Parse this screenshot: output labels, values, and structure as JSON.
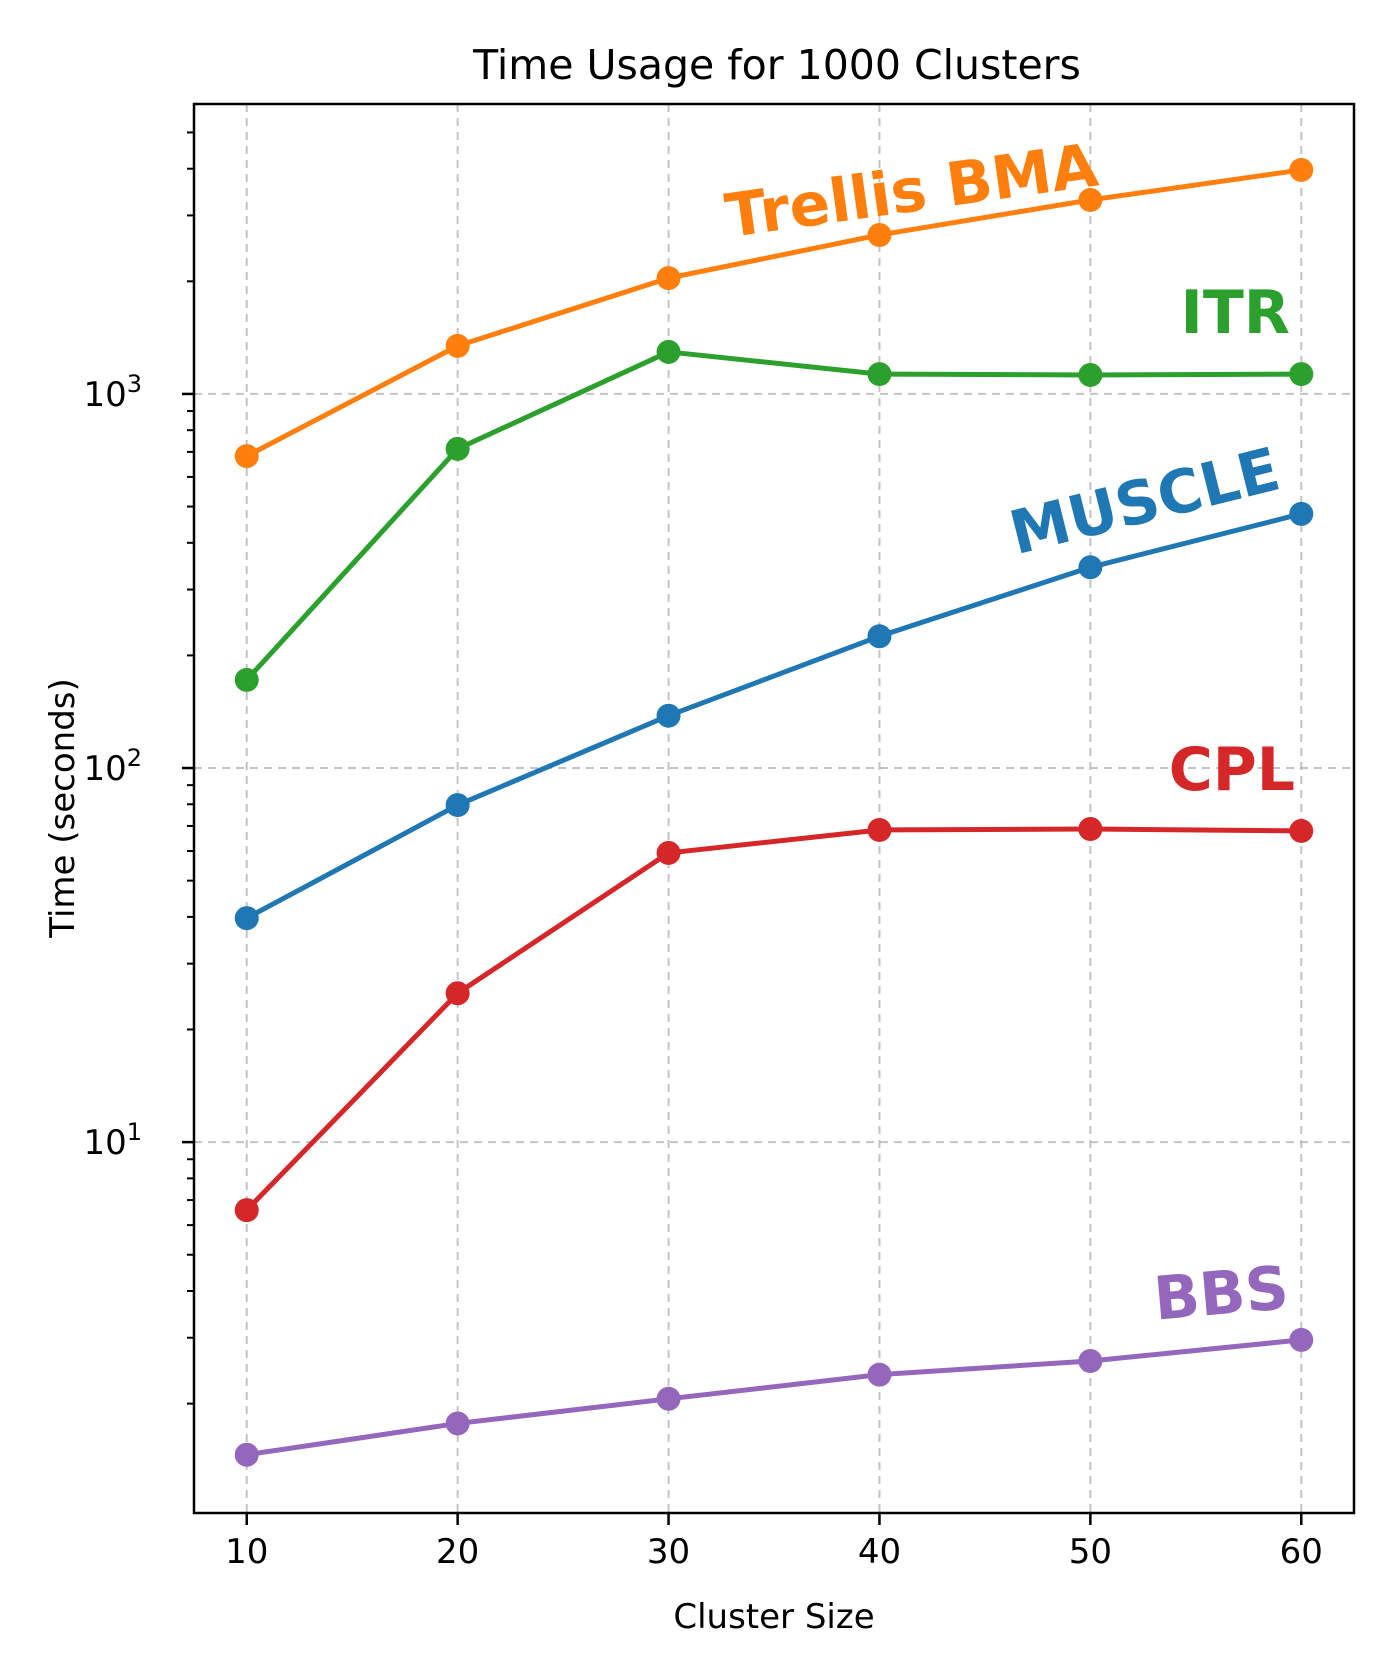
{
  "chart_data": {
    "type": "line",
    "title": "Time Usage for 1000 Clusters",
    "xlabel": "Cluster Size",
    "ylabel": "Time (seconds)",
    "yscale": "log",
    "xlim": [
      7.5,
      62.5
    ],
    "ylim": [
      1.02,
      5957
    ],
    "grid": true,
    "x": [
      10,
      20,
      30,
      40,
      50,
      60
    ],
    "x_ticks": [
      "10",
      "20",
      "30",
      "40",
      "50",
      "60"
    ],
    "y_ticks": [
      {
        "base": "10",
        "exp": "1",
        "value": 10
      },
      {
        "base": "10",
        "exp": "2",
        "value": 100
      },
      {
        "base": "10",
        "exp": "3",
        "value": 1000
      }
    ],
    "series": [
      {
        "name": "Trellis BMA",
        "color": "#ff7f0e",
        "values": [
          682,
          1344,
          2040,
          2660,
          3300,
          3970
        ],
        "label_angle": -8
      },
      {
        "name": "ITR",
        "color": "#2ca02c",
        "values": [
          172,
          713,
          1295,
          1130,
          1124,
          1130
        ],
        "label_angle": 0
      },
      {
        "name": "MUSCLE",
        "color": "#1f77b4",
        "values": [
          39.7,
          79.6,
          138,
          225,
          344,
          478
        ],
        "label_angle": -14
      },
      {
        "name": "CPL",
        "color": "#d62728",
        "values": [
          6.58,
          25.0,
          59.3,
          68.3,
          68.7,
          67.9
        ],
        "label_angle": 0
      },
      {
        "name": "BBS",
        "color": "#9467bd",
        "values": [
          1.46,
          1.77,
          2.06,
          2.39,
          2.6,
          2.96
        ],
        "label_angle": -5
      }
    ]
  }
}
